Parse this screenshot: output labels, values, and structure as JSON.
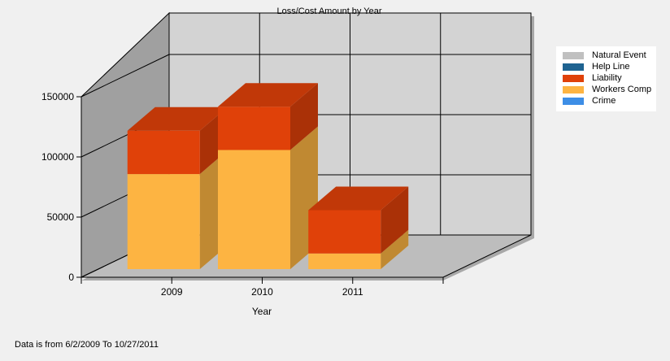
{
  "chart_data": {
    "type": "bar",
    "stacked": true,
    "three_d": true,
    "title": "Loss/Cost Amount by Year",
    "xlabel": "Year",
    "ylabel": "",
    "categories": [
      "2009",
      "2010",
      "2011"
    ],
    "series": [
      {
        "name": "Natural Event",
        "color": "#c0c0c0",
        "values": [
          0,
          0,
          0
        ]
      },
      {
        "name": "Help Line",
        "color": "#1f6391",
        "values": [
          0,
          0,
          0
        ]
      },
      {
        "name": "Liability",
        "color": "#e04109",
        "values": [
          36000,
          36000,
          36000
        ]
      },
      {
        "name": "Workers Comp",
        "color": "#fdb442",
        "values": [
          79000,
          99000,
          13000
        ]
      },
      {
        "name": "Crime",
        "color": "#3d8ee6",
        "values": [
          0,
          0,
          0
        ]
      }
    ],
    "ylim": [
      0,
      150000
    ],
    "yticks": [
      0,
      50000,
      100000,
      150000
    ],
    "ytick_labels": [
      "0",
      "50000",
      "100000",
      "150000"
    ],
    "grid": true,
    "legend_position": "top-right"
  },
  "footer": {
    "note": "Data is from 6/2/2009 To 10/27/2011"
  }
}
